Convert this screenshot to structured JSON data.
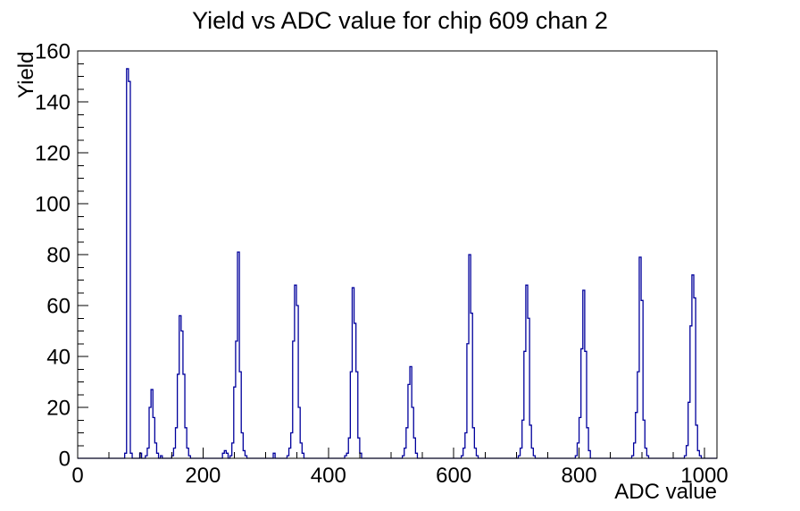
{
  "chart_data": {
    "type": "bar",
    "style": "root-histogram-outline",
    "title": "Yield vs ADC value for chip 609 chan 2",
    "xlabel": "ADC value",
    "ylabel": "Yield",
    "xlim": [
      0,
      1020
    ],
    "ylim": [
      0,
      160
    ],
    "x_major_ticks": [
      0,
      200,
      400,
      600,
      800,
      1000
    ],
    "x_minor_step": 50,
    "y_major_ticks": [
      0,
      20,
      40,
      60,
      80,
      100,
      120,
      140,
      160
    ],
    "y_minor_step": 5,
    "grid": false,
    "legend": false,
    "line_color": "#00009c",
    "axis_color": "#000000",
    "bin_width": 3,
    "peaks": [
      {
        "center": 80,
        "height": 153
      },
      {
        "center": 118,
        "height": 27
      },
      {
        "center": 163,
        "height": 56
      },
      {
        "center": 256,
        "height": 81
      },
      {
        "center": 347,
        "height": 68
      },
      {
        "center": 439,
        "height": 67
      },
      {
        "center": 531,
        "height": 36
      },
      {
        "center": 625,
        "height": 80
      },
      {
        "center": 716,
        "height": 68
      },
      {
        "center": 807,
        "height": 66
      },
      {
        "center": 897,
        "height": 79
      },
      {
        "center": 981,
        "height": 72
      }
    ],
    "bins": [
      [
        75,
        2
      ],
      [
        78,
        153
      ],
      [
        81,
        148
      ],
      [
        84,
        2
      ],
      [
        99,
        2
      ],
      [
        108,
        1
      ],
      [
        111,
        4
      ],
      [
        114,
        20
      ],
      [
        117,
        27
      ],
      [
        120,
        16
      ],
      [
        123,
        6
      ],
      [
        126,
        2
      ],
      [
        132,
        1
      ],
      [
        150,
        1
      ],
      [
        153,
        4
      ],
      [
        156,
        12
      ],
      [
        159,
        33
      ],
      [
        162,
        56
      ],
      [
        165,
        50
      ],
      [
        168,
        33
      ],
      [
        171,
        12
      ],
      [
        174,
        4
      ],
      [
        177,
        1
      ],
      [
        231,
        2
      ],
      [
        234,
        3
      ],
      [
        237,
        2
      ],
      [
        243,
        1
      ],
      [
        246,
        6
      ],
      [
        249,
        28
      ],
      [
        252,
        46
      ],
      [
        255,
        81
      ],
      [
        258,
        34
      ],
      [
        261,
        10
      ],
      [
        264,
        3
      ],
      [
        267,
        1
      ],
      [
        312,
        2
      ],
      [
        334,
        1
      ],
      [
        337,
        4
      ],
      [
        340,
        10
      ],
      [
        343,
        46
      ],
      [
        346,
        68
      ],
      [
        349,
        60
      ],
      [
        352,
        20
      ],
      [
        355,
        6
      ],
      [
        358,
        2
      ],
      [
        426,
        1
      ],
      [
        429,
        2
      ],
      [
        432,
        8
      ],
      [
        435,
        34
      ],
      [
        438,
        67
      ],
      [
        441,
        53
      ],
      [
        444,
        34
      ],
      [
        447,
        8
      ],
      [
        450,
        2
      ],
      [
        518,
        1
      ],
      [
        521,
        4
      ],
      [
        524,
        12
      ],
      [
        527,
        29
      ],
      [
        530,
        36
      ],
      [
        533,
        20
      ],
      [
        536,
        8
      ],
      [
        539,
        2
      ],
      [
        612,
        1
      ],
      [
        615,
        4
      ],
      [
        618,
        10
      ],
      [
        621,
        45
      ],
      [
        624,
        80
      ],
      [
        627,
        57
      ],
      [
        630,
        12
      ],
      [
        633,
        4
      ],
      [
        636,
        1
      ],
      [
        703,
        1
      ],
      [
        706,
        4
      ],
      [
        709,
        15
      ],
      [
        712,
        42
      ],
      [
        715,
        68
      ],
      [
        718,
        55
      ],
      [
        721,
        13
      ],
      [
        724,
        4
      ],
      [
        727,
        1
      ],
      [
        794,
        1
      ],
      [
        797,
        6
      ],
      [
        800,
        16
      ],
      [
        803,
        43
      ],
      [
        806,
        66
      ],
      [
        809,
        42
      ],
      [
        812,
        12
      ],
      [
        815,
        3
      ],
      [
        884,
        1
      ],
      [
        887,
        6
      ],
      [
        890,
        18
      ],
      [
        893,
        34
      ],
      [
        896,
        79
      ],
      [
        899,
        62
      ],
      [
        902,
        15
      ],
      [
        905,
        4
      ],
      [
        908,
        1
      ],
      [
        968,
        1
      ],
      [
        971,
        5
      ],
      [
        974,
        22
      ],
      [
        977,
        52
      ],
      [
        980,
        72
      ],
      [
        983,
        63
      ],
      [
        986,
        13
      ],
      [
        989,
        3
      ],
      [
        992,
        1
      ]
    ]
  }
}
